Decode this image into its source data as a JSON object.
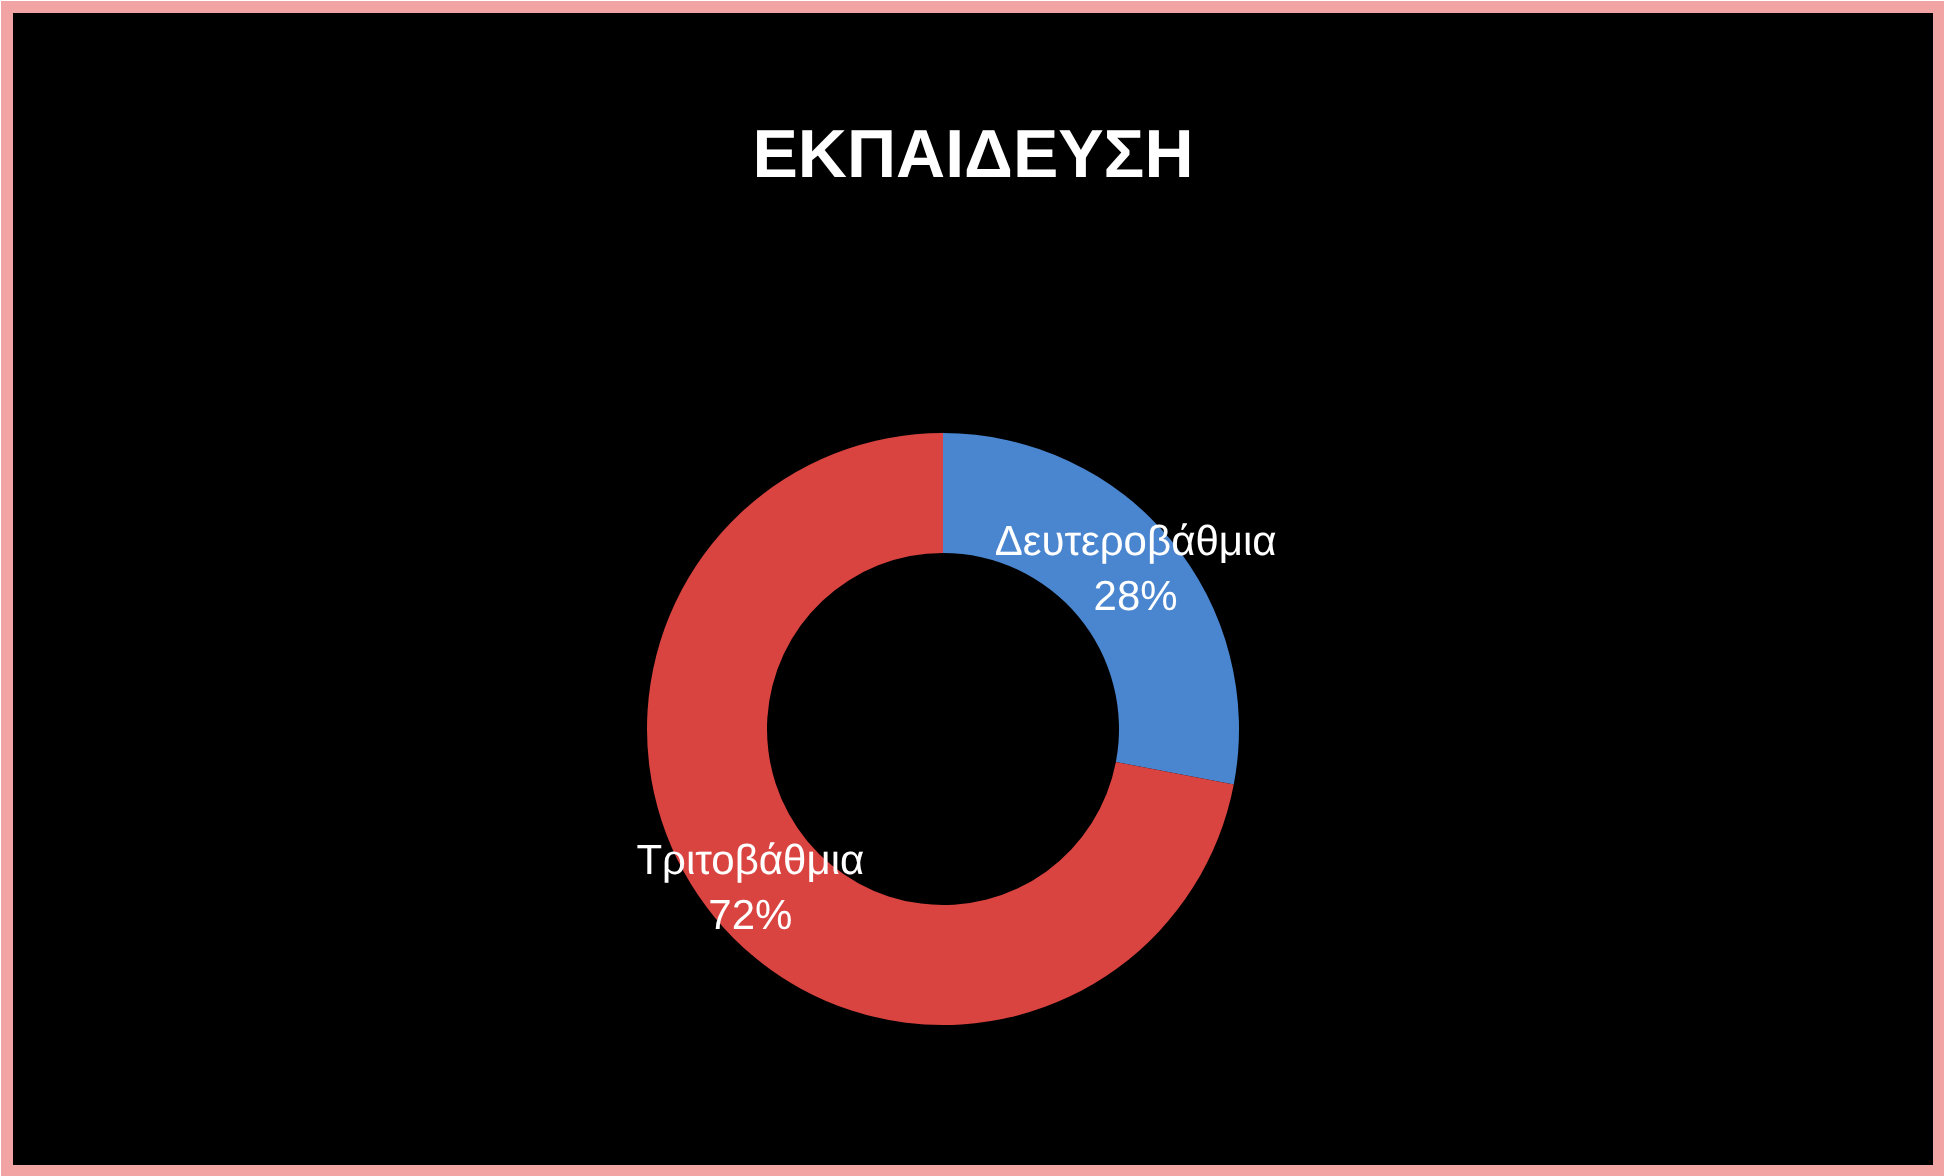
{
  "chart_data": {
    "type": "donut",
    "title": "ΕΚΠΑΙΔΕΥΣΗ",
    "categories": [
      "Δευτεροβάθμια",
      "Τριτοβάθμια"
    ],
    "values": [
      28,
      72
    ],
    "colors": [
      "#4a86d0",
      "#d94340"
    ],
    "value_labels": [
      "28%",
      "72%"
    ]
  }
}
